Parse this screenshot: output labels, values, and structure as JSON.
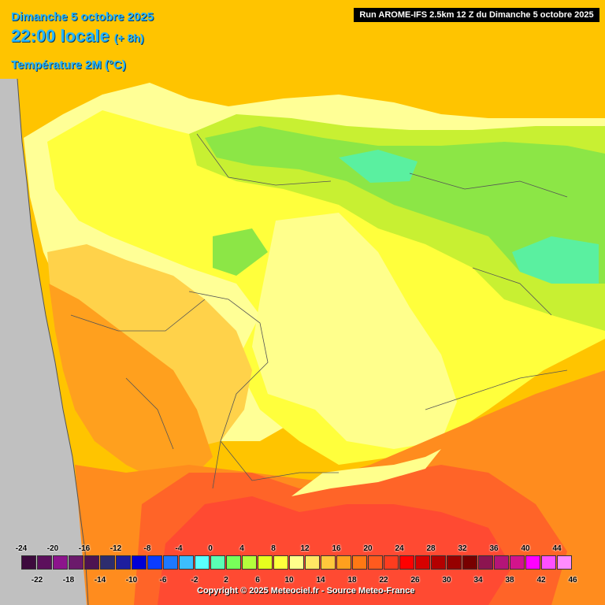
{
  "header": {
    "date_line": "Dimanche 5 octobre 2025",
    "time_line": "22:00 locale",
    "lead_time": "(+ 8h)",
    "parameter": "Température 2M (°C)",
    "run_info": "Run AROME-IFS 2.5km 12 Z du Dimanche 5 octobre 2025"
  },
  "legend": {
    "top_labels": [
      "-24",
      "-20",
      "-16",
      "-12",
      "-8",
      "-4",
      "0",
      "4",
      "8",
      "12",
      "16",
      "20",
      "24",
      "28",
      "32",
      "36",
      "40",
      "44"
    ],
    "bottom_labels": [
      "-22",
      "-18",
      "-14",
      "-10",
      "-6",
      "-2",
      "2",
      "6",
      "10",
      "14",
      "18",
      "22",
      "26",
      "30",
      "34",
      "38",
      "42",
      "46"
    ],
    "colors": [
      "#3d0a3d",
      "#5c0f5c",
      "#8c148c",
      "#6b1a6b",
      "#4d1452",
      "#2d2d6e",
      "#1e1e9e",
      "#0000d6",
      "#0a3cff",
      "#1e78ff",
      "#3cbeff",
      "#5affff",
      "#5affb4",
      "#78ff5a",
      "#b4ff3c",
      "#e6ff1e",
      "#ffff3c",
      "#ffff8c",
      "#ffe664",
      "#ffc83c",
      "#ffa01e",
      "#ff7814",
      "#ff5a1e",
      "#ff3c1e",
      "#ff0000",
      "#d70000",
      "#b40000",
      "#960000",
      "#780000",
      "#8c1450",
      "#b41478",
      "#d2148c",
      "#ff00ff",
      "#ff50ff",
      "#ff8cff"
    ]
  },
  "copyright": "Copyright © 2025 Meteociel.fr - Source Meteo-France",
  "map": {
    "sea_color": "#c0c0c0",
    "border_color": "#555555"
  }
}
